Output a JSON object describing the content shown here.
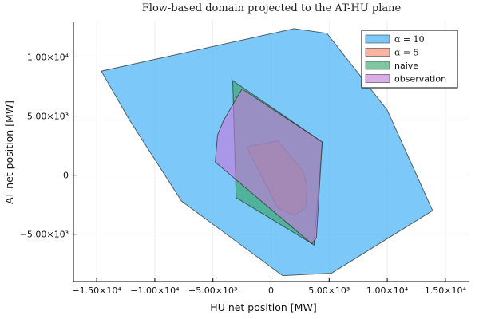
{
  "chart_data": {
    "type": "area",
    "title": "Flow-based domain projected to the AT-HU plane",
    "xlabel": "HU net position [MW]",
    "ylabel": "AT net position [MW]",
    "xlim": [
      -17000,
      17000
    ],
    "ylim": [
      -9000,
      13000
    ],
    "grid": true,
    "legend_position": "top-right",
    "x_ticks": [
      {
        "value": -15000,
        "label": "−1.50×10⁴"
      },
      {
        "value": -10000,
        "label": "−1.00×10⁴"
      },
      {
        "value": -5000,
        "label": "−5.00×10³"
      },
      {
        "value": 0,
        "label": "0"
      },
      {
        "value": 5000,
        "label": "5.00×10³"
      },
      {
        "value": 10000,
        "label": "1.00×10⁴"
      },
      {
        "value": 15000,
        "label": "1.50×10⁴"
      }
    ],
    "y_ticks": [
      {
        "value": -5000,
        "label": "−5.00×10³"
      },
      {
        "value": 0,
        "label": "0"
      },
      {
        "value": 5000,
        "label": "5.00×10³"
      },
      {
        "value": 10000,
        "label": "1.00×10⁴"
      }
    ],
    "series": [
      {
        "name": "α = 10",
        "color": "#4ab4f6",
        "opacity": 0.72,
        "points": [
          [
            -14600,
            8800
          ],
          [
            2000,
            12400
          ],
          [
            4800,
            12000
          ],
          [
            10000,
            5500
          ],
          [
            13900,
            -3000
          ],
          [
            5200,
            -8300
          ],
          [
            1000,
            -8500
          ],
          [
            -7700,
            -2200
          ],
          [
            -12200,
            4700
          ]
        ]
      },
      {
        "name": "α = 5",
        "color": "#f28c6f",
        "opacity": 0.65,
        "points": [
          [
            -2100,
            2400
          ],
          [
            600,
            2900
          ],
          [
            2700,
            400
          ],
          [
            3100,
            -800
          ],
          [
            3000,
            -2700
          ],
          [
            2000,
            -3400
          ],
          [
            600,
            -2800
          ]
        ]
      },
      {
        "name": "naive",
        "color": "#3aa66a",
        "opacity": 0.65,
        "points": [
          [
            -3300,
            8000
          ],
          [
            4400,
            2800
          ],
          [
            3700,
            -5900
          ],
          [
            -3000,
            -1900
          ]
        ]
      },
      {
        "name": "observation",
        "color": "#c779dc",
        "opacity": 0.62,
        "points": [
          [
            -2500,
            7300
          ],
          [
            4400,
            2800
          ],
          [
            3900,
            -5300
          ],
          [
            3500,
            -5800
          ],
          [
            -4800,
            1100
          ],
          [
            -4600,
            3400
          ],
          [
            -4100,
            4600
          ]
        ]
      }
    ]
  }
}
